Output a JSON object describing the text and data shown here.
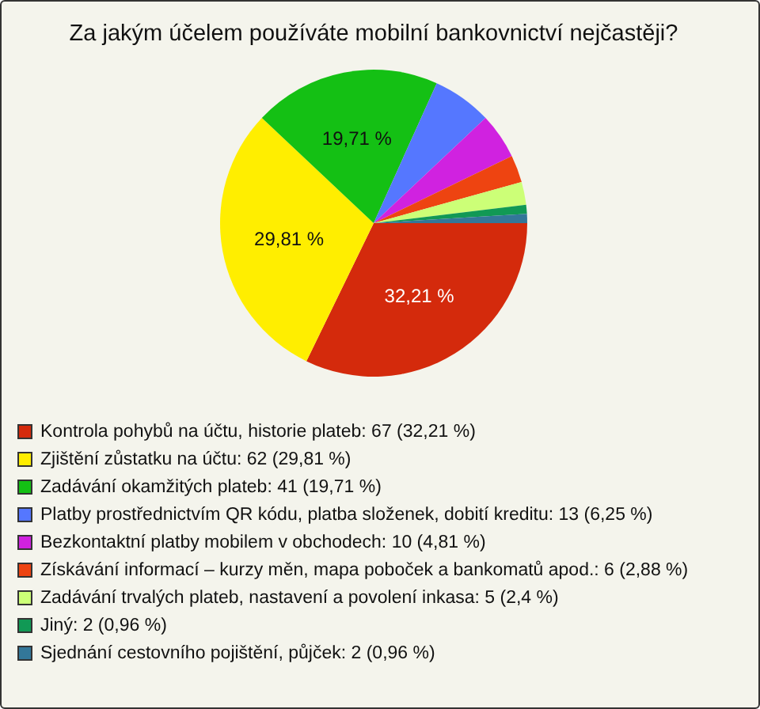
{
  "chart_data": {
    "type": "pie",
    "title": "Za jakým účelem používáte mobilní bankovnictví nejčastěji?",
    "categories": [
      "Kontrola pohybů na účtu, historie plateb: 67 (32,21 %)",
      "Zjištění zůstatku na účtu: 62 (29,81 %)",
      "Zadávání okamžitých plateb: 41 (19,71 %)",
      "Platby prostřednictvím QR kódu, platba složenek, dobití kreditu: 13 (6,25 %)",
      "Bezkontaktní platby mobilem v obchodech: 10 (4,81 %)",
      "Získávání informací – kurzy měn, mapa poboček a bankomatů apod.: 6 (2,88 %)",
      "Zadávání trvalých plateb, nastavení a povolení inkasa: 5 (2,4 %)",
      "Jiný: 2 (0,96 %)",
      "Sjednání cestovního pojištění, půjček: 2 (0,96 %)"
    ],
    "values": [
      32.21,
      29.81,
      19.71,
      6.25,
      4.81,
      2.88,
      2.4,
      0.96,
      0.96
    ],
    "colors": [
      "#d42a0c",
      "#ffee00",
      "#14c014",
      "#5577ff",
      "#d022e0",
      "#ee4411",
      "#ccff77",
      "#119955",
      "#337799"
    ],
    "value_labels": [
      "32,21 %",
      "29,81 %",
      "19,71 %",
      null,
      null,
      null,
      null,
      null,
      null
    ],
    "legend": "bottom"
  }
}
